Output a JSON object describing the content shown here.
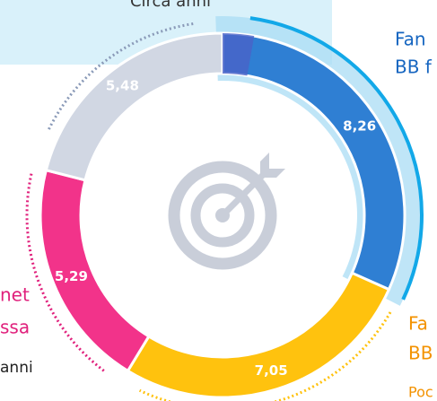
{
  "chart_data": {
    "type": "donut",
    "values": [
      8.26,
      7.05,
      5.29,
      5.48
    ],
    "value_labels": [
      "8,26",
      "7,05",
      "5,29",
      "5,48"
    ],
    "colors": [
      "#2f7fd3",
      "#ffc20e",
      "#f2338a",
      "#d1d7e3"
    ],
    "annotations": [
      "Circa anni",
      "Fan",
      "BB f",
      "net",
      "ssa",
      "anni",
      "Fa",
      "BB",
      "Poc"
    ],
    "annotation_colors": [
      "#333333",
      "#1565c0",
      "#1565c0",
      "#e0207c",
      "#e0207c",
      "#222222",
      "#f39200",
      "#f39200",
      "#f39200"
    ]
  }
}
